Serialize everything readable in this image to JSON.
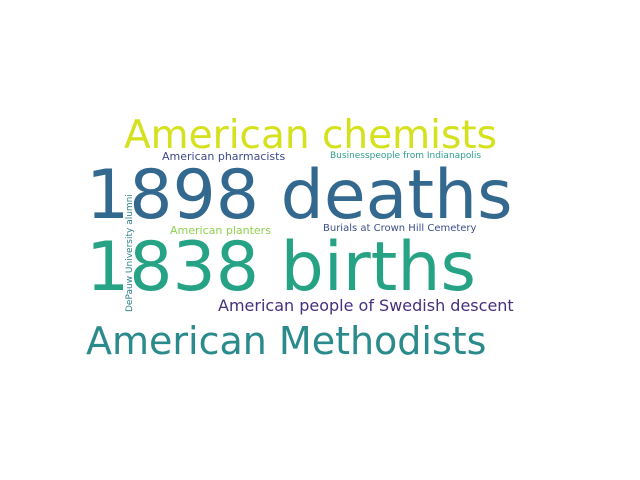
{
  "words": [
    {
      "text": "1898 deaths",
      "color": "#33698e"
    },
    {
      "text": "1838 births",
      "color": "#26a385"
    },
    {
      "text": "American chemists",
      "color": "#d4e11c"
    },
    {
      "text": "American Methodists",
      "color": "#2a8a8c"
    },
    {
      "text": "American people of Swedish descent",
      "color": "#45307a"
    },
    {
      "text": "American pharmacists",
      "color": "#3e4a89"
    },
    {
      "text": "Businesspeople from Indianapolis",
      "color": "#2f9e8e"
    },
    {
      "text": "American planters",
      "color": "#8fd14f"
    },
    {
      "text": "Burials at Crown Hill Cemetery",
      "color": "#3c4f8a"
    },
    {
      "text": "DePauw University alumni",
      "color": "#2c7f8e"
    }
  ]
}
